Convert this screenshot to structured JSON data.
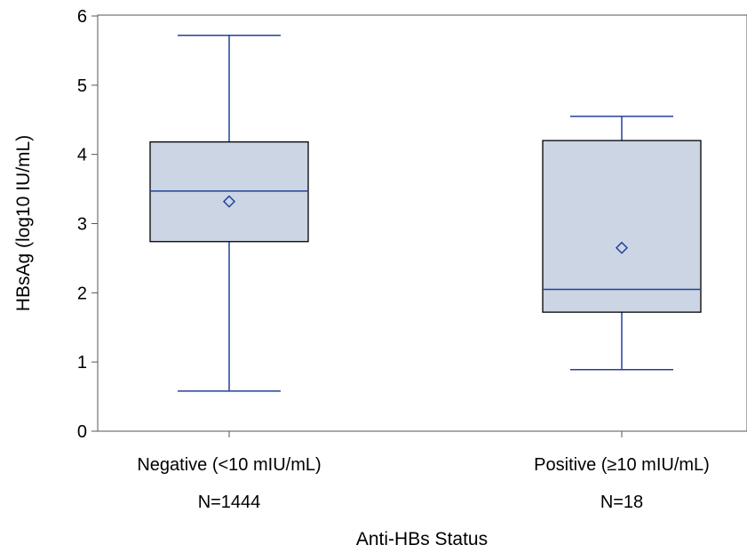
{
  "chart_data": {
    "type": "boxplot",
    "xlabel": "Anti-HBs Status",
    "ylabel": "HBsAg (log10 IU/mL)",
    "ylim": [
      0,
      6
    ],
    "yticks": [
      "0",
      "1",
      "2",
      "3",
      "4",
      "5",
      "6"
    ],
    "grid": false,
    "legend": "none",
    "categories": [
      {
        "label": "Negative (<10 mIU/mL)",
        "n_label": "N=1444"
      },
      {
        "label": "Positive (≥10 mIU/mL)",
        "n_label": "N=18"
      }
    ],
    "boxes": [
      {
        "whisker_low": 0.58,
        "q1": 2.74,
        "median": 3.47,
        "q3": 4.18,
        "whisker_high": 5.72,
        "mean": 3.32
      },
      {
        "whisker_low": 0.89,
        "q1": 1.72,
        "median": 2.05,
        "q3": 4.2,
        "whisker_high": 4.55,
        "mean": 2.65
      }
    ],
    "colors": {
      "box_fill": "#cbd5e4",
      "whisker": "#23409a",
      "box_edge": "#000000",
      "axis": "#555555"
    }
  }
}
